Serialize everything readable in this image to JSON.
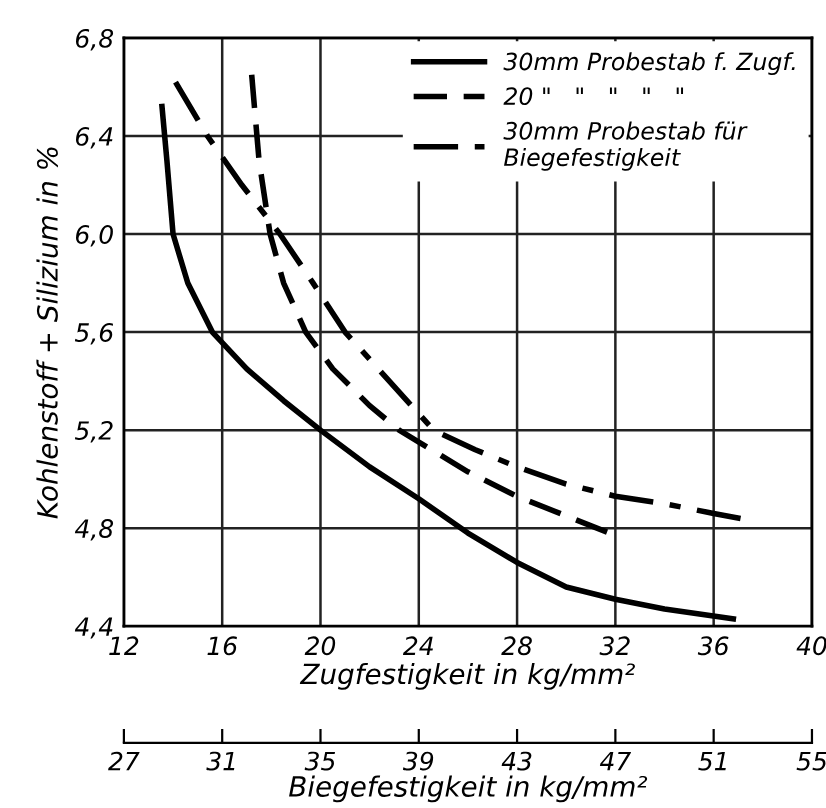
{
  "chart_data": {
    "type": "line",
    "xlabel": "Zugfestigkeit in kg/mm²",
    "ylabel": "Kohlenstoff + Silizium in %",
    "x2label": "Biegefestigkeit in kg/mm²",
    "xlim": [
      12,
      40
    ],
    "xticks": [
      12,
      16,
      20,
      24,
      28,
      32,
      36,
      40
    ],
    "x2lim": [
      27,
      55
    ],
    "x2ticks": [
      27,
      31,
      35,
      39,
      43,
      47,
      51,
      55
    ],
    "ylim": [
      4.4,
      6.8
    ],
    "yticks": [
      {
        "value": 4.4,
        "label": "4,4"
      },
      {
        "value": 4.8,
        "label": "4,8"
      },
      {
        "value": 5.2,
        "label": "5,2"
      },
      {
        "value": 5.6,
        "label": "5,6"
      },
      {
        "value": 6.0,
        "label": "6,0"
      },
      {
        "value": 6.4,
        "label": "6,4"
      },
      {
        "value": 6.8,
        "label": "6,8"
      }
    ],
    "grid": true,
    "legend": "top right",
    "series": [
      {
        "name": "30mm Probestab f. Zugf.",
        "color": "#000000",
        "line_style": "solid",
        "x": [
          13.55,
          13.75,
          14.0,
          14.6,
          15.6,
          17,
          18.5,
          20,
          22,
          24,
          26,
          28,
          30,
          32,
          34,
          36.8
        ],
        "values": [
          6.52,
          6.3,
          6.0,
          5.8,
          5.6,
          5.45,
          5.32,
          5.2,
          5.05,
          4.92,
          4.78,
          4.66,
          4.56,
          4.51,
          4.47,
          4.43
        ]
      },
      {
        "name": "20 \"   \"   \"   \"   \"",
        "color": "#000000",
        "line_style": "dashed",
        "x": [
          17.2,
          17.5,
          17.95,
          18.5,
          19.4,
          20.5,
          22,
          23.2,
          26,
          28,
          30,
          32
        ],
        "values": [
          6.65,
          6.3,
          6.0,
          5.8,
          5.6,
          5.45,
          5.3,
          5.2,
          5.03,
          4.93,
          4.85,
          4.77
        ]
      },
      {
        "name": "30mm Probestab für\nBiegefestigkeit",
        "color": "#000000",
        "line_style": "dashdot",
        "x": [
          14.1,
          15.4,
          16.8,
          18.35,
          19.7,
          21.0,
          22.8,
          24.6,
          26.3,
          28,
          30,
          32,
          34,
          36,
          37.6
        ],
        "values": [
          6.62,
          6.4,
          6.2,
          6.0,
          5.8,
          5.6,
          5.4,
          5.2,
          5.12,
          5.05,
          4.98,
          4.93,
          4.9,
          4.86,
          4.83
        ]
      }
    ]
  }
}
